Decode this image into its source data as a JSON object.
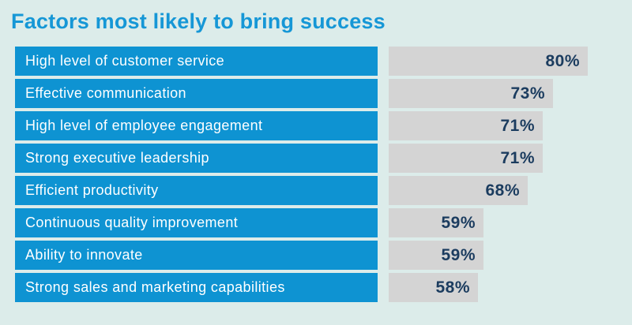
{
  "page": {
    "background_color": "#dcecea"
  },
  "title": {
    "text": "Factors most likely to bring success",
    "color": "#1697d6"
  },
  "chart_data": {
    "type": "bar",
    "orientation": "horizontal",
    "title": "Factors most likely to bring success",
    "categories": [
      "High level of customer service",
      "Effective communication",
      "High level of employee engagement",
      "Strong executive leadership",
      "Efficient productivity",
      "Continuous quality improvement",
      "Ability to innovate",
      "Strong sales and marketing capabilities"
    ],
    "values": [
      80,
      73,
      71,
      71,
      68,
      59,
      59,
      58
    ],
    "value_labels": [
      "80%",
      "73%",
      "71%",
      "71%",
      "68%",
      "59%",
      "59%",
      "58%"
    ],
    "unit": "%",
    "xlabel": "",
    "ylabel": "",
    "xlim": [
      0,
      100
    ],
    "grid": false,
    "legend": false,
    "colors": {
      "category_bar": "#0e93d2",
      "category_text": "#ffffff",
      "value_bar": "#d4d4d4",
      "value_text": "#1b3c5f"
    }
  }
}
